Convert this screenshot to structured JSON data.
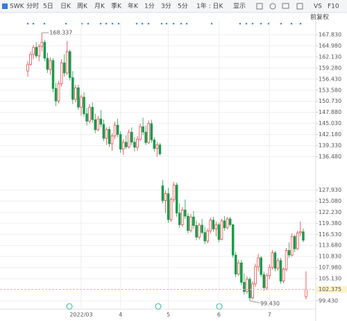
{
  "toolbar": {
    "symbol": "SWK",
    "tabs": [
      "分时",
      "5日",
      "日K",
      "周K",
      "月K",
      "季K",
      "年K",
      "1分",
      "3分",
      "5分"
    ],
    "active_tab": "日K",
    "range": "1年 : 日K",
    "display": "显示",
    "compare": "VS",
    "f10": "F10",
    "adjust": "前复权"
  },
  "chart_data": {
    "type": "candlestick",
    "up_color": "#e8373d",
    "down_color": "#1a9b4b",
    "open": [
      158.5,
      160.2,
      162.8,
      164.6,
      162.4,
      164.8,
      165.9,
      161.8,
      158.9,
      161.2,
      154.0,
      150.8,
      155.2,
      160.6,
      158.0,
      163.5,
      156.8,
      151.2,
      154.2,
      149.2,
      151.8,
      147.5,
      145.6,
      149.2,
      146.0,
      143.4,
      146.2,
      144.8,
      141.2,
      143.5,
      139.8,
      141.8,
      144.6,
      142.2,
      138.4,
      140.2,
      139.0,
      142.8,
      140.2,
      138.9,
      141.0,
      144.2,
      142.8,
      140.1,
      145.0,
      140.8,
      138.6,
      139.5,
      129.0,
      125.2,
      127.0,
      120.3,
      125.5,
      129.2,
      122.0,
      119.0,
      122.8,
      121.2,
      117.5,
      121.0,
      118.8,
      115.8,
      118.9,
      117.0,
      114.8,
      117.4,
      120.2,
      117.9,
      119.0,
      115.2,
      120.0,
      118.2,
      120.5,
      119.0,
      111.2,
      106.3,
      109.2,
      104.2,
      101.8,
      105.0,
      100.2,
      103.8,
      108.2,
      110.5,
      106.2,
      102.8,
      105.9,
      108.0,
      111.8,
      107.8,
      109.8,
      104.5,
      107.6,
      112.4,
      111.2,
      116.0,
      112.8,
      116.9,
      117.2,
      100.5
    ],
    "high": [
      161.0,
      163.5,
      165.2,
      166.0,
      165.5,
      168.337,
      166.5,
      163.2,
      162.0,
      161.8,
      155.5,
      156.0,
      161.5,
      162.8,
      166.2,
      164.0,
      158.5,
      155.0,
      155.0,
      152.5,
      153.0,
      149.0,
      150.0,
      150.5,
      147.5,
      147.0,
      148.5,
      146.0,
      144.0,
      144.2,
      142.5,
      145.5,
      146.2,
      143.0,
      141.0,
      142.0,
      143.5,
      144.0,
      141.5,
      141.8,
      145.0,
      146.5,
      144.5,
      145.8,
      146.0,
      141.5,
      140.2,
      140.0,
      130.5,
      127.8,
      128.5,
      126.0,
      130.0,
      129.8,
      124.5,
      123.5,
      125.5,
      122.0,
      121.8,
      122.5,
      120.0,
      119.5,
      120.5,
      118.5,
      118.0,
      120.8,
      121.0,
      119.8,
      119.5,
      120.5,
      121.2,
      121.0,
      121.0,
      119.2,
      112.0,
      110.0,
      110.0,
      106.5,
      105.8,
      105.5,
      104.5,
      109.0,
      111.5,
      111.0,
      107.0,
      106.5,
      108.8,
      112.5,
      112.2,
      110.5,
      110.5,
      108.0,
      113.0,
      114.5,
      116.8,
      116.5,
      117.5,
      119.8,
      118.0,
      107.0
    ],
    "low": [
      157.0,
      159.8,
      161.5,
      161.8,
      161.0,
      163.5,
      161.0,
      158.0,
      157.5,
      153.0,
      149.5,
      150.2,
      154.5,
      157.0,
      157.5,
      156.0,
      150.0,
      150.5,
      148.5,
      147.0,
      146.8,
      144.5,
      145.0,
      145.2,
      142.5,
      143.0,
      144.0,
      140.5,
      139.5,
      139.0,
      138.0,
      141.0,
      141.5,
      137.5,
      137.0,
      138.5,
      138.6,
      139.5,
      137.8,
      138.0,
      140.5,
      142.0,
      139.5,
      139.8,
      140.0,
      137.8,
      136.5,
      136.8,
      124.5,
      122.0,
      119.5,
      119.8,
      124.8,
      121.0,
      118.2,
      118.5,
      120.5,
      116.8,
      117.0,
      118.0,
      115.0,
      115.2,
      116.5,
      114.0,
      114.2,
      116.8,
      117.2,
      116.0,
      114.5,
      115.0,
      117.5,
      117.8,
      118.5,
      110.5,
      105.5,
      105.8,
      103.5,
      101.0,
      101.2,
      99.43,
      99.8,
      103.0,
      107.0,
      105.5,
      102.0,
      102.2,
      105.0,
      107.5,
      107.0,
      107.2,
      103.8,
      104.0,
      107.0,
      110.5,
      110.8,
      112.0,
      112.5,
      116.0,
      114.5,
      99.8
    ],
    "close": [
      160.2,
      162.8,
      164.6,
      162.4,
      164.8,
      165.9,
      161.8,
      158.9,
      161.2,
      154.0,
      150.8,
      155.2,
      160.6,
      158.0,
      163.5,
      156.8,
      151.2,
      154.2,
      149.2,
      151.8,
      147.5,
      145.6,
      149.2,
      146.0,
      143.4,
      146.2,
      144.8,
      141.2,
      143.5,
      139.8,
      141.8,
      144.6,
      142.2,
      138.4,
      140.2,
      139.0,
      142.8,
      140.2,
      138.9,
      141.0,
      144.2,
      142.8,
      140.1,
      145.0,
      140.8,
      138.6,
      139.5,
      137.2,
      125.2,
      127.0,
      120.3,
      125.5,
      129.2,
      122.0,
      119.0,
      122.8,
      121.2,
      117.5,
      121.0,
      118.8,
      115.8,
      118.9,
      117.0,
      114.8,
      117.4,
      120.2,
      117.9,
      119.0,
      115.2,
      120.0,
      118.2,
      120.5,
      119.0,
      111.2,
      106.3,
      109.2,
      104.2,
      101.8,
      105.0,
      100.2,
      103.8,
      108.2,
      110.5,
      106.2,
      102.8,
      105.9,
      108.0,
      111.8,
      107.8,
      109.8,
      104.5,
      107.6,
      112.4,
      111.2,
      116.0,
      112.8,
      116.9,
      117.2,
      115.0,
      102.375
    ],
    "max_label": "168.337",
    "max_index": 5,
    "min_label": "99.430",
    "min_index": 79,
    "last_price_label": "102.375",
    "ylim": [
      97.29,
      169.97
    ],
    "yticks": [
      {
        "value": 167.83,
        "label": "167.830"
      },
      {
        "value": 164.98,
        "label": "164.980"
      },
      {
        "value": 162.13,
        "label": "162.130"
      },
      {
        "value": 159.28,
        "label": "159.280"
      },
      {
        "value": 156.43,
        "label": "156.430"
      },
      {
        "value": 153.58,
        "label": "153.580"
      },
      {
        "value": 150.73,
        "label": "150.730"
      },
      {
        "value": 147.88,
        "label": "147.880"
      },
      {
        "value": 145.03,
        "label": "145.030"
      },
      {
        "value": 142.18,
        "label": "142.180"
      },
      {
        "value": 139.33,
        "label": "139.330"
      },
      {
        "value": 136.48,
        "label": "136.480"
      },
      {
        "value": 127.93,
        "label": "127.930"
      },
      {
        "value": 125.08,
        "label": "125.080"
      },
      {
        "value": 122.23,
        "label": "122.230"
      },
      {
        "value": 119.38,
        "label": "119.380"
      },
      {
        "value": 116.53,
        "label": "116.530"
      },
      {
        "value": 113.68,
        "label": "113.680"
      },
      {
        "value": 110.83,
        "label": "110.830"
      },
      {
        "value": 107.98,
        "label": "107.980"
      },
      {
        "value": 105.13,
        "label": "105.130"
      },
      {
        "value": 99.43,
        "label": "99.430"
      }
    ],
    "xticks": [
      {
        "value": 19,
        "label": "2022/03"
      },
      {
        "value": 33,
        "label": "4"
      },
      {
        "value": 50,
        "label": "5"
      },
      {
        "value": 68,
        "label": "6"
      },
      {
        "value": 86,
        "label": "7"
      }
    ],
    "grid": true
  }
}
